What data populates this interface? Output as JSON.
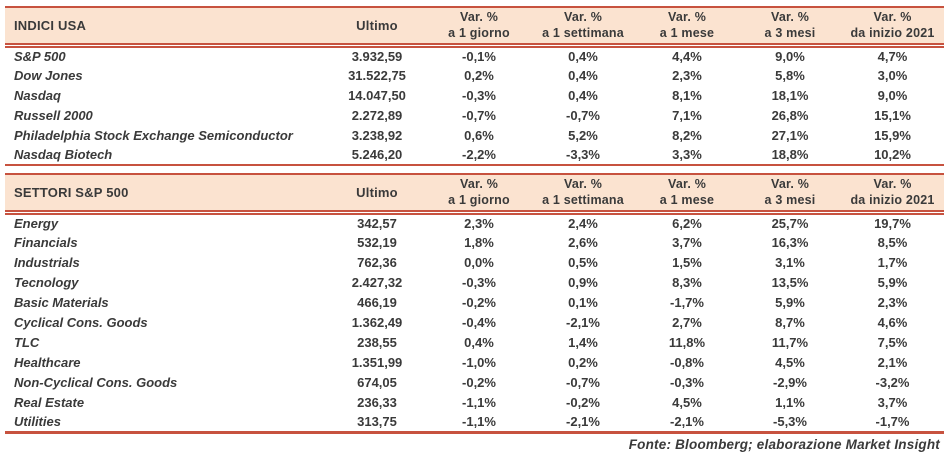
{
  "colors": {
    "border_red": "#c7523f",
    "header_bg": "#fbe3d0",
    "text": "#3a3a3a"
  },
  "header_labels": {
    "ultimo": "Ultimo",
    "var_pct": "Var. %",
    "periods": [
      "a 1 giorno",
      "a 1 settimana",
      "a 1 mese",
      "a 3 mesi",
      "da inizio 2021"
    ]
  },
  "chart_data": [
    {
      "type": "table",
      "title": "INDICI USA",
      "columns": [
        "INDICI USA",
        "Ultimo",
        "Var. % a 1 giorno",
        "Var. % a 1 settimana",
        "Var. % a 1 mese",
        "Var. % a 3 mesi",
        "Var. % da inizio 2021"
      ],
      "rows": [
        [
          "S&P 500",
          "3.932,59",
          "-0,1%",
          "0,4%",
          "4,4%",
          "9,0%",
          "4,7%"
        ],
        [
          "Dow Jones",
          "31.522,75",
          "0,2%",
          "0,4%",
          "2,3%",
          "5,8%",
          "3,0%"
        ],
        [
          "Nasdaq",
          "14.047,50",
          "-0,3%",
          "0,4%",
          "8,1%",
          "18,1%",
          "9,0%"
        ],
        [
          "Russell 2000",
          "2.272,89",
          "-0,7%",
          "-0,7%",
          "7,1%",
          "26,8%",
          "15,1%"
        ],
        [
          "Philadelphia Stock Exchange Semiconductor",
          "3.238,92",
          "0,6%",
          "5,2%",
          "8,2%",
          "27,1%",
          "15,9%"
        ],
        [
          "Nasdaq Biotech",
          "5.246,20",
          "-2,2%",
          "-3,3%",
          "3,3%",
          "18,8%",
          "10,2%"
        ]
      ]
    },
    {
      "type": "table",
      "title": "SETTORI S&P 500",
      "columns": [
        "SETTORI S&P 500",
        "Ultimo",
        "Var. % a 1 giorno",
        "Var. % a 1 settimana",
        "Var. % a 1 mese",
        "Var. % a 3 mesi",
        "Var. % da inizio 2021"
      ],
      "rows": [
        [
          "Energy",
          "342,57",
          "2,3%",
          "2,4%",
          "6,2%",
          "25,7%",
          "19,7%"
        ],
        [
          "Financials",
          "532,19",
          "1,8%",
          "2,6%",
          "3,7%",
          "16,3%",
          "8,5%"
        ],
        [
          "Industrials",
          "762,36",
          "0,0%",
          "0,5%",
          "1,5%",
          "3,1%",
          "1,7%"
        ],
        [
          "Tecnology",
          "2.427,32",
          "-0,3%",
          "0,9%",
          "8,3%",
          "13,5%",
          "5,9%"
        ],
        [
          "Basic Materials",
          "466,19",
          "-0,2%",
          "0,1%",
          "-1,7%",
          "5,9%",
          "2,3%"
        ],
        [
          "Cyclical Cons. Goods",
          "1.362,49",
          "-0,4%",
          "-2,1%",
          "2,7%",
          "8,7%",
          "4,6%"
        ],
        [
          "TLC",
          "238,55",
          "0,4%",
          "1,4%",
          "11,8%",
          "11,7%",
          "7,5%"
        ],
        [
          "Healthcare",
          "1.351,99",
          "-1,0%",
          "0,2%",
          "-0,8%",
          "4,5%",
          "2,1%"
        ],
        [
          "Non-Cyclical Cons. Goods",
          "674,05",
          "-0,2%",
          "-0,7%",
          "-0,3%",
          "-2,9%",
          "-3,2%"
        ],
        [
          "Real Estate",
          "236,33",
          "-1,1%",
          "-0,2%",
          "4,5%",
          "1,1%",
          "3,7%"
        ],
        [
          "Utilities",
          "313,75",
          "-1,1%",
          "-2,1%",
          "-2,1%",
          "-5,3%",
          "-1,7%"
        ]
      ]
    }
  ],
  "footer": "Fonte: Bloomberg; elaborazione Market Insight"
}
